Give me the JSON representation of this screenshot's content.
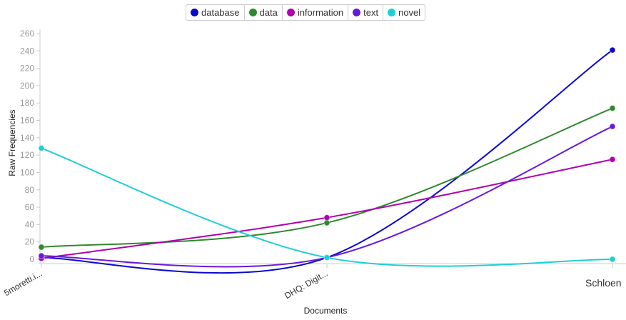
{
  "chart_data": {
    "type": "line",
    "xlabel": "Documents",
    "ylabel": "Raw Frequencies",
    "ylim": [
      0,
      260
    ],
    "yticks": [
      0,
      20,
      40,
      60,
      80,
      100,
      120,
      140,
      160,
      180,
      200,
      220,
      240,
      260
    ],
    "categories": [
      "5moretti.i...",
      "DHQ: Digit...",
      "Schloen"
    ],
    "legend_position": "top-center",
    "grid": false,
    "series": [
      {
        "name": "database",
        "color": "#0a0acc",
        "values": [
          2,
          2,
          241
        ]
      },
      {
        "name": "data",
        "color": "#2d8a2d",
        "values": [
          14,
          42,
          174
        ]
      },
      {
        "name": "information",
        "color": "#b000b0",
        "values": [
          1,
          48,
          115
        ]
      },
      {
        "name": "text",
        "color": "#6a1ad6",
        "values": [
          4,
          2,
          153
        ]
      },
      {
        "name": "novel",
        "color": "#1ecfd6",
        "values": [
          128,
          2,
          0
        ]
      }
    ]
  }
}
